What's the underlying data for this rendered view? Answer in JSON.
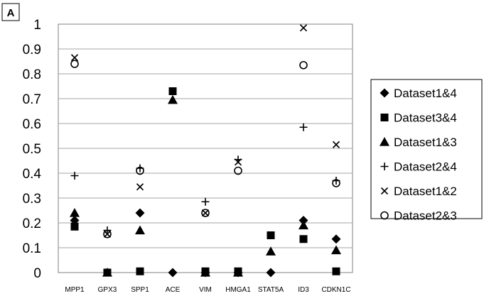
{
  "panel_label": "A",
  "chart_data": {
    "type": "scatter",
    "categories": [
      "MPP1",
      "GPX3",
      "SPP1",
      "ACE",
      "VIM",
      "HMGA1",
      "STAT5A",
      "ID3",
      "CDKN1C"
    ],
    "ylim": [
      0,
      1
    ],
    "yticks": [
      "0",
      "0.1",
      "0.2",
      "0.3",
      "0.4",
      "0.5",
      "0.6",
      "0.7",
      "0.8",
      "0.9",
      "1"
    ],
    "grid": true,
    "legend_position": "right",
    "series": [
      {
        "name": "Dataset1&4",
        "marker": "diamond",
        "values": [
          0.21,
          null,
          0.24,
          0.0,
          0.0,
          0.0,
          0.0,
          0.21,
          0.135
        ]
      },
      {
        "name": "Dataset3&4",
        "marker": "square",
        "values": [
          0.185,
          0.0,
          0.005,
          0.73,
          0.005,
          0.005,
          0.15,
          0.135,
          0.005
        ]
      },
      {
        "name": "Dataset1&3",
        "marker": "triangle",
        "values": [
          0.24,
          0.0,
          0.17,
          0.695,
          0.0,
          0.0,
          0.085,
          0.19,
          0.09
        ]
      },
      {
        "name": "Dataset2&4",
        "marker": "plus",
        "values": [
          0.39,
          0.17,
          0.42,
          null,
          0.285,
          0.455,
          null,
          0.585,
          0.37
        ]
      },
      {
        "name": "Dataset1&2",
        "marker": "cross",
        "values": [
          0.865,
          0.155,
          0.345,
          null,
          0.24,
          0.445,
          null,
          0.985,
          0.515
        ]
      },
      {
        "name": "Dataset2&3",
        "marker": "circle",
        "values": [
          0.84,
          0.155,
          0.41,
          null,
          0.24,
          0.41,
          null,
          0.835,
          0.36
        ]
      }
    ]
  }
}
